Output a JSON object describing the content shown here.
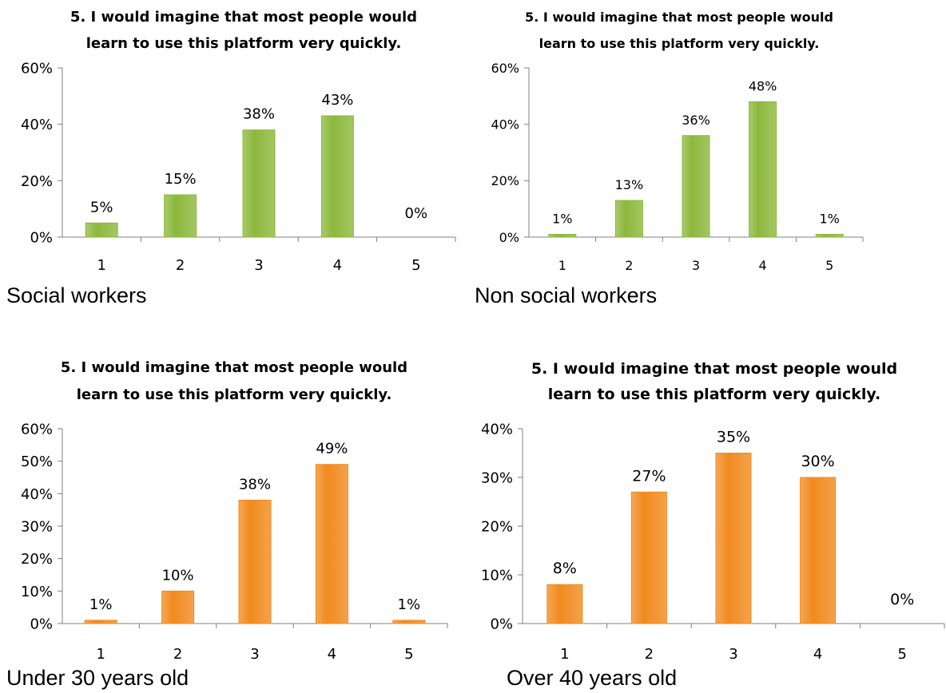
{
  "colors": {
    "green": "#8CB83C",
    "orange": "#F18A1E"
  },
  "charts": [
    {
      "caption": "Social workers",
      "chart_data": {
        "type": "bar",
        "title": [
          "5. I would imagine that most people would",
          "learn to use this platform very quickly."
        ],
        "categories": [
          "1",
          "2",
          "3",
          "4",
          "5"
        ],
        "values": [
          5,
          15,
          38,
          43,
          0
        ],
        "data_labels": [
          "5%",
          "15%",
          "38%",
          "43%",
          "0%"
        ],
        "yticks": [
          "0%",
          "20%",
          "40%",
          "60%"
        ],
        "ylim": [
          0,
          60
        ],
        "color": "green"
      }
    },
    {
      "caption": "Non social workers",
      "chart_data": {
        "type": "bar",
        "title": [
          "5. I would imagine that most people would",
          "learn to use this platform very quickly."
        ],
        "categories": [
          "1",
          "2",
          "3",
          "4",
          "5"
        ],
        "values": [
          1,
          13,
          36,
          48,
          1
        ],
        "data_labels": [
          "1%",
          "13%",
          "36%",
          "48%",
          "1%"
        ],
        "yticks": [
          "0%",
          "20%",
          "40%",
          "60%"
        ],
        "ylim": [
          0,
          60
        ],
        "color": "green"
      }
    },
    {
      "caption": "Under 30 years old",
      "chart_data": {
        "type": "bar",
        "title": [
          "5. I would imagine that most people would",
          "learn to use this platform very quickly."
        ],
        "categories": [
          "1",
          "2",
          "3",
          "4",
          "5"
        ],
        "values": [
          1,
          10,
          38,
          49,
          1
        ],
        "data_labels": [
          "1%",
          "10%",
          "38%",
          "49%",
          "1%"
        ],
        "yticks": [
          "0%",
          "10%",
          "20%",
          "30%",
          "40%",
          "50%",
          "60%"
        ],
        "ylim": [
          0,
          60
        ],
        "color": "orange"
      }
    },
    {
      "caption": "Over 40 years old",
      "chart_data": {
        "type": "bar",
        "title": [
          "5. I would imagine that most people would",
          "learn to use this platform very quickly."
        ],
        "categories": [
          "1",
          "2",
          "3",
          "4",
          "5"
        ],
        "values": [
          8,
          27,
          35,
          30,
          0
        ],
        "data_labels": [
          "8%",
          "27%",
          "35%",
          "30%",
          "0%"
        ],
        "yticks": [
          "0%",
          "10%",
          "20%",
          "30%",
          "40%"
        ],
        "ylim": [
          0,
          40
        ],
        "color": "orange"
      }
    }
  ]
}
